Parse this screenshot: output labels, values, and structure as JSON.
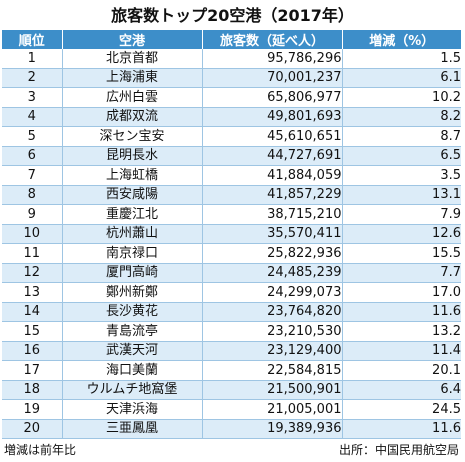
{
  "chart_data": {
    "type": "table",
    "title": "旅客数トップ20空港（2017年）",
    "columns": [
      "順位",
      "空港",
      "旅客数（延べ人）",
      "増減（%）"
    ],
    "rows": [
      {
        "rank": "1",
        "airport": "北京首都",
        "passengers": "95,786,296",
        "growth": "1.5"
      },
      {
        "rank": "2",
        "airport": "上海浦東",
        "passengers": "70,001,237",
        "growth": "6.1"
      },
      {
        "rank": "3",
        "airport": "広州白雲",
        "passengers": "65,806,977",
        "growth": "10.2"
      },
      {
        "rank": "4",
        "airport": "成都双流",
        "passengers": "49,801,693",
        "growth": "8.2"
      },
      {
        "rank": "5",
        "airport": "深セン宝安",
        "passengers": "45,610,651",
        "growth": "8.7"
      },
      {
        "rank": "6",
        "airport": "昆明長水",
        "passengers": "44,727,691",
        "growth": "6.5"
      },
      {
        "rank": "7",
        "airport": "上海虹橋",
        "passengers": "41,884,059",
        "growth": "3.5"
      },
      {
        "rank": "8",
        "airport": "西安咸陽",
        "passengers": "41,857,229",
        "growth": "13.1"
      },
      {
        "rank": "9",
        "airport": "重慶江北",
        "passengers": "38,715,210",
        "growth": "7.9"
      },
      {
        "rank": "10",
        "airport": "杭州蕭山",
        "passengers": "35,570,411",
        "growth": "12.6"
      },
      {
        "rank": "11",
        "airport": "南京禄口",
        "passengers": "25,822,936",
        "growth": "15.5"
      },
      {
        "rank": "12",
        "airport": "厦門高崎",
        "passengers": "24,485,239",
        "growth": "7.7"
      },
      {
        "rank": "13",
        "airport": "鄭州新鄭",
        "passengers": "24,299,073",
        "growth": "17.0"
      },
      {
        "rank": "14",
        "airport": "長沙黄花",
        "passengers": "23,764,820",
        "growth": "11.6"
      },
      {
        "rank": "15",
        "airport": "青島流亭",
        "passengers": "23,210,530",
        "growth": "13.2"
      },
      {
        "rank": "16",
        "airport": "武漢天河",
        "passengers": "23,129,400",
        "growth": "11.4"
      },
      {
        "rank": "17",
        "airport": "海口美蘭",
        "passengers": "22,584,815",
        "growth": "20.1"
      },
      {
        "rank": "18",
        "airport": "ウルムチ地窩堡",
        "passengers": "21,500,901",
        "growth": "6.4"
      },
      {
        "rank": "19",
        "airport": "天津浜海",
        "passengers": "21,005,001",
        "growth": "24.5"
      },
      {
        "rank": "20",
        "airport": "三亜鳳凰",
        "passengers": "19,389,936",
        "growth": "11.6"
      }
    ],
    "footnote": "増減は前年比",
    "source": "出所：中国民用航空局"
  },
  "colors": {
    "header_bg": "#3d8ec9",
    "row_alt_bg": "#dcecf8",
    "grid_line": "#9ec5e3"
  }
}
